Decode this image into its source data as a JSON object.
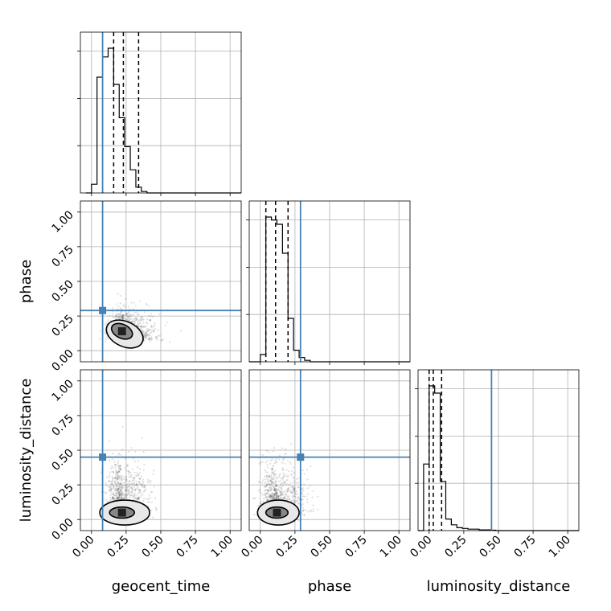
{
  "chart_data": {
    "type": "corner",
    "parameters": [
      "geocent_time",
      "phase",
      "luminosity_distance"
    ],
    "xlabels": [
      "geocent_time",
      "phase",
      "luminosity_distance"
    ],
    "ylabels": [
      "phase",
      "luminosity_distance"
    ],
    "axis_range": [
      -0.08,
      1.08
    ],
    "tick_values": [
      0.0,
      0.25,
      0.5,
      0.75,
      1.0
    ],
    "tick_labels": [
      "0.00",
      "0.25",
      "0.50",
      "0.75",
      "1.00"
    ],
    "grid": true,
    "truths": {
      "geocent_time": 0.08,
      "phase": 0.29,
      "luminosity_distance": 0.45
    },
    "truth_color": "#4682b4",
    "quantiles": {
      "geocent_time": [
        0.16,
        0.23,
        0.34
      ],
      "phase": [
        0.04,
        0.11,
        0.2
      ],
      "luminosity_distance": [
        0.0,
        0.03,
        0.09
      ]
    },
    "histograms": {
      "geocent_time": {
        "bin_start": -0.04,
        "bin_width": 0.04,
        "counts": [
          0,
          0.06,
          0.8,
          0.94,
          1.0,
          0.75,
          0.52,
          0.32,
          0.16,
          0.04,
          0.01,
          0,
          0,
          0,
          0,
          0,
          0,
          0,
          0,
          0,
          0,
          0,
          0,
          0,
          0,
          0,
          0,
          0,
          0
        ]
      },
      "phase": {
        "bin_start": -0.08,
        "bin_width": 0.04,
        "counts": [
          0,
          0,
          0.05,
          1.0,
          0.98,
          0.95,
          0.75,
          0.3,
          0.08,
          0.03,
          0.01,
          0,
          0,
          0,
          0,
          0,
          0,
          0,
          0,
          0,
          0,
          0,
          0,
          0,
          0,
          0,
          0,
          0,
          0
        ]
      },
      "luminosity_distance": {
        "bin_start": -0.08,
        "bin_width": 0.04,
        "counts": [
          0,
          0.46,
          1.0,
          0.95,
          0.34,
          0.08,
          0.04,
          0.02,
          0.015,
          0.01,
          0.01,
          0.005,
          0.005,
          0.003,
          0,
          0,
          0,
          0,
          0,
          0,
          0,
          0,
          0,
          0,
          0,
          0,
          0,
          0,
          0
        ]
      }
    },
    "scatter_panels": [
      {
        "x": "geocent_time",
        "y": "phase",
        "cx": 0.24,
        "cy": 0.11,
        "sx": 0.09,
        "sy": 0.08,
        "n": 900,
        "contours": [
          {
            "cx": 0.24,
            "cy": 0.12,
            "rx": 0.14,
            "ry": 0.09,
            "rot": 25
          },
          {
            "cx": 0.22,
            "cy": 0.14,
            "rx": 0.08,
            "ry": 0.05,
            "rot": 25
          }
        ]
      },
      {
        "x": "geocent_time",
        "y": "luminosity_distance",
        "cx": 0.22,
        "cy": 0.08,
        "sx": 0.08,
        "sy": 0.14,
        "n": 900,
        "contours": [
          {
            "cx": 0.24,
            "cy": 0.05,
            "rx": 0.18,
            "ry": 0.09,
            "rot": 0
          },
          {
            "cx": 0.22,
            "cy": 0.05,
            "rx": 0.09,
            "ry": 0.04,
            "rot": 0
          }
        ]
      },
      {
        "x": "phase",
        "y": "luminosity_distance",
        "cx": 0.12,
        "cy": 0.08,
        "sx": 0.09,
        "sy": 0.14,
        "n": 900,
        "contours": [
          {
            "cx": 0.13,
            "cy": 0.05,
            "rx": 0.15,
            "ry": 0.09,
            "rot": 0
          },
          {
            "cx": 0.12,
            "cy": 0.05,
            "rx": 0.08,
            "ry": 0.04,
            "rot": 0
          }
        ]
      }
    ]
  }
}
